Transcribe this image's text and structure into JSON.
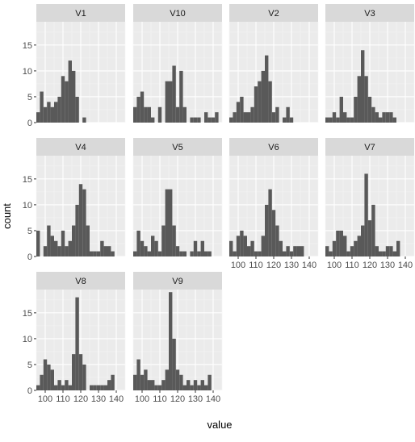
{
  "chart_data": {
    "type": "bar",
    "subtype": "faceted histogram",
    "xlabel": "value",
    "ylabel": "count",
    "bin_width": 2,
    "xlim": [
      95,
      145
    ],
    "ylim": [
      0,
      19.5
    ],
    "x_ticks": [
      100,
      110,
      120,
      130,
      140
    ],
    "x_tick_labels": [
      "100",
      "110",
      "120",
      "130",
      "140"
    ],
    "y_ticks": [
      0,
      5,
      10,
      15
    ],
    "y_tick_labels": [
      "0",
      "5",
      "10",
      "15"
    ],
    "grid": true,
    "colors": {
      "bar": "#595959",
      "panel_background": "#ebebeb",
      "strip_background": "#d9d9d9",
      "grid_major": "#ffffff",
      "grid_minor": "#f3f3f3",
      "tick_text": "#4d4d4d"
    },
    "facets": [
      {
        "label": "V1",
        "bins": [
          [
            96,
            2
          ],
          [
            98,
            6
          ],
          [
            100,
            3
          ],
          [
            102,
            4
          ],
          [
            104,
            3
          ],
          [
            106,
            4
          ],
          [
            108,
            5
          ],
          [
            110,
            9
          ],
          [
            112,
            8
          ],
          [
            114,
            12
          ],
          [
            116,
            10
          ],
          [
            118,
            5
          ],
          [
            120,
            0
          ],
          [
            122,
            1
          ]
        ]
      },
      {
        "label": "V10",
        "bins": [
          [
            96,
            3
          ],
          [
            98,
            5
          ],
          [
            100,
            6
          ],
          [
            102,
            3
          ],
          [
            104,
            3
          ],
          [
            106,
            1
          ],
          [
            108,
            0
          ],
          [
            110,
            3
          ],
          [
            112,
            0
          ],
          [
            114,
            8
          ],
          [
            116,
            8
          ],
          [
            118,
            11
          ],
          [
            120,
            3
          ],
          [
            122,
            10
          ],
          [
            124,
            3
          ],
          [
            126,
            0
          ],
          [
            128,
            1
          ],
          [
            130,
            1
          ],
          [
            132,
            1
          ],
          [
            134,
            0
          ],
          [
            136,
            2
          ],
          [
            138,
            1
          ],
          [
            140,
            1
          ],
          [
            142,
            2
          ]
        ]
      },
      {
        "label": "V2",
        "bins": [
          [
            96,
            1
          ],
          [
            98,
            2
          ],
          [
            100,
            4
          ],
          [
            102,
            5
          ],
          [
            104,
            2
          ],
          [
            106,
            2
          ],
          [
            108,
            3
          ],
          [
            110,
            7
          ],
          [
            112,
            8
          ],
          [
            114,
            10
          ],
          [
            116,
            13
          ],
          [
            118,
            8
          ],
          [
            120,
            2
          ],
          [
            122,
            3
          ],
          [
            124,
            0
          ],
          [
            126,
            1
          ],
          [
            128,
            3
          ],
          [
            130,
            1
          ]
        ]
      },
      {
        "label": "V3",
        "bins": [
          [
            96,
            1
          ],
          [
            98,
            1
          ],
          [
            100,
            2
          ],
          [
            102,
            1
          ],
          [
            104,
            5
          ],
          [
            106,
            2
          ],
          [
            108,
            1
          ],
          [
            110,
            1
          ],
          [
            112,
            5
          ],
          [
            114,
            9
          ],
          [
            116,
            14
          ],
          [
            118,
            9
          ],
          [
            120,
            5
          ],
          [
            122,
            3
          ],
          [
            124,
            2
          ],
          [
            126,
            1
          ],
          [
            128,
            2
          ],
          [
            130,
            2
          ],
          [
            132,
            2
          ],
          [
            134,
            1
          ]
        ]
      },
      {
        "label": "V4",
        "bins": [
          [
            96,
            5
          ],
          [
            98,
            0
          ],
          [
            100,
            2
          ],
          [
            102,
            6
          ],
          [
            104,
            4
          ],
          [
            106,
            3
          ],
          [
            108,
            2
          ],
          [
            110,
            5
          ],
          [
            112,
            2
          ],
          [
            114,
            3
          ],
          [
            116,
            6
          ],
          [
            118,
            10
          ],
          [
            120,
            14
          ],
          [
            122,
            13
          ],
          [
            124,
            6
          ],
          [
            126,
            1
          ],
          [
            128,
            1
          ],
          [
            130,
            1
          ],
          [
            132,
            3
          ],
          [
            134,
            2
          ],
          [
            136,
            2
          ],
          [
            138,
            1
          ]
        ]
      },
      {
        "label": "V5",
        "bins": [
          [
            96,
            1
          ],
          [
            98,
            5
          ],
          [
            100,
            3
          ],
          [
            102,
            2
          ],
          [
            104,
            1
          ],
          [
            106,
            4
          ],
          [
            108,
            3
          ],
          [
            110,
            1
          ],
          [
            112,
            6
          ],
          [
            114,
            13
          ],
          [
            116,
            13
          ],
          [
            118,
            6
          ],
          [
            120,
            2
          ],
          [
            122,
            1
          ],
          [
            124,
            1
          ],
          [
            126,
            0
          ],
          [
            128,
            1
          ],
          [
            130,
            3
          ],
          [
            132,
            1
          ],
          [
            134,
            3
          ],
          [
            136,
            1
          ],
          [
            138,
            1
          ]
        ]
      },
      {
        "label": "V6",
        "bins": [
          [
            96,
            3
          ],
          [
            98,
            1
          ],
          [
            100,
            4
          ],
          [
            102,
            5
          ],
          [
            104,
            4
          ],
          [
            106,
            2
          ],
          [
            108,
            3
          ],
          [
            110,
            1
          ],
          [
            112,
            1
          ],
          [
            114,
            4
          ],
          [
            116,
            10
          ],
          [
            118,
            13
          ],
          [
            120,
            9
          ],
          [
            122,
            6
          ],
          [
            124,
            3
          ],
          [
            126,
            1
          ],
          [
            128,
            2
          ],
          [
            130,
            1
          ],
          [
            132,
            2
          ],
          [
            134,
            2
          ],
          [
            136,
            2
          ]
        ]
      },
      {
        "label": "V7",
        "bins": [
          [
            96,
            2
          ],
          [
            98,
            1
          ],
          [
            100,
            3
          ],
          [
            102,
            5
          ],
          [
            104,
            5
          ],
          [
            106,
            4
          ],
          [
            108,
            1
          ],
          [
            110,
            2
          ],
          [
            112,
            3
          ],
          [
            114,
            4
          ],
          [
            116,
            6
          ],
          [
            118,
            16
          ],
          [
            120,
            7
          ],
          [
            122,
            10
          ],
          [
            124,
            2
          ],
          [
            126,
            1
          ],
          [
            128,
            1
          ],
          [
            130,
            2
          ],
          [
            132,
            2
          ],
          [
            134,
            1
          ],
          [
            136,
            3
          ]
        ]
      },
      {
        "label": "V8",
        "bins": [
          [
            96,
            1
          ],
          [
            98,
            3
          ],
          [
            100,
            6
          ],
          [
            102,
            5
          ],
          [
            104,
            4
          ],
          [
            106,
            1
          ],
          [
            108,
            2
          ],
          [
            110,
            1
          ],
          [
            112,
            2
          ],
          [
            114,
            1
          ],
          [
            116,
            7
          ],
          [
            118,
            18
          ],
          [
            120,
            7
          ],
          [
            122,
            5
          ],
          [
            124,
            0
          ],
          [
            126,
            1
          ],
          [
            128,
            1
          ],
          [
            130,
            1
          ],
          [
            132,
            1
          ],
          [
            134,
            1
          ],
          [
            136,
            2
          ],
          [
            138,
            3
          ]
        ]
      },
      {
        "label": "V9",
        "bins": [
          [
            96,
            3
          ],
          [
            98,
            6
          ],
          [
            100,
            3
          ],
          [
            102,
            4
          ],
          [
            104,
            2
          ],
          [
            106,
            2
          ],
          [
            108,
            1
          ],
          [
            110,
            1
          ],
          [
            112,
            2
          ],
          [
            114,
            4
          ],
          [
            116,
            19
          ],
          [
            118,
            10
          ],
          [
            120,
            4
          ],
          [
            122,
            3
          ],
          [
            124,
            1
          ],
          [
            126,
            2
          ],
          [
            128,
            1
          ],
          [
            130,
            2
          ],
          [
            132,
            1
          ],
          [
            134,
            2
          ],
          [
            136,
            1
          ],
          [
            138,
            3
          ]
        ]
      }
    ]
  }
}
